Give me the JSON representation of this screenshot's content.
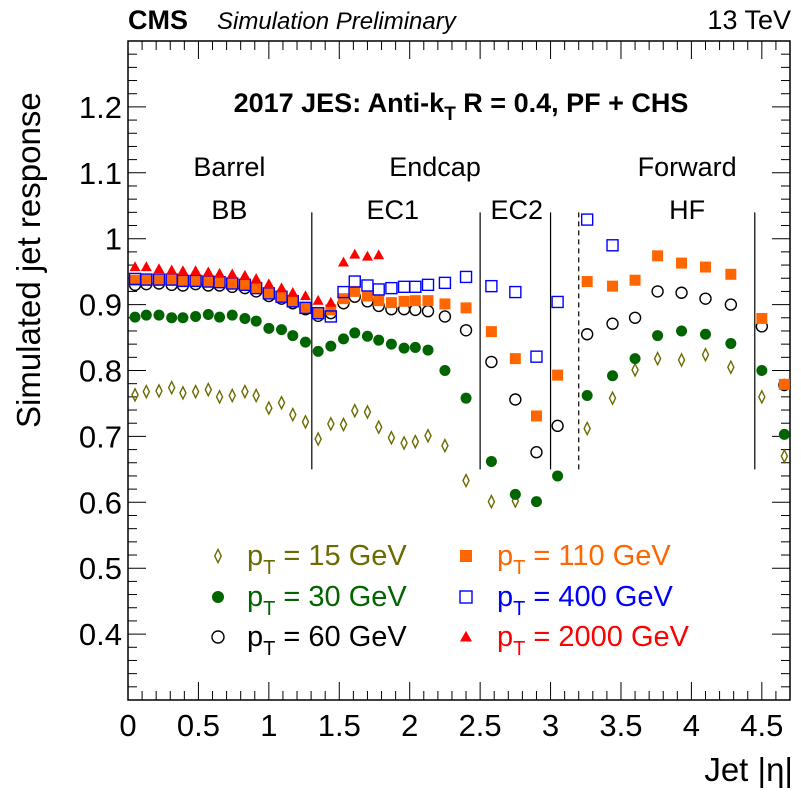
{
  "header": {
    "experiment": "CMS",
    "status": "Simulation Preliminary",
    "energy": "13 TeV"
  },
  "chart_data": {
    "type": "scatter",
    "title": "2017 JES: Anti-k",
    "title_sub": "T",
    "title_rest": " R = 0.4, PF + CHS",
    "xlabel": "Jet |η|",
    "ylabel": "Simulated jet response",
    "xlim": [
      0,
      4.7
    ],
    "ylim": [
      0.3,
      1.3
    ],
    "x_ticks": [
      0,
      0.5,
      1,
      1.5,
      2,
      2.5,
      3,
      3.5,
      4,
      4.5
    ],
    "x_tick_labels": [
      "0",
      "0.5",
      "1",
      "1.5",
      "2",
      "2.5",
      "3",
      "3.5",
      "4",
      "4.5"
    ],
    "y_ticks": [
      0.4,
      0.5,
      0.6,
      0.7,
      0.8,
      0.9,
      1.0,
      1.1,
      1.2
    ],
    "y_tick_labels": [
      "0.4",
      "0.5",
      "0.6",
      "0.7",
      "0.8",
      "0.9",
      "1",
      "1.1",
      "1.2"
    ],
    "grid": false,
    "legend_position": "bottom-center",
    "region_labels": [
      {
        "text": "Barrel",
        "x": 0.72,
        "y": 1.095
      },
      {
        "text": "BB",
        "x": 0.72,
        "y": 1.03
      },
      {
        "text": "Endcap",
        "x": 2.18,
        "y": 1.095
      },
      {
        "text": "EC1",
        "x": 1.88,
        "y": 1.03
      },
      {
        "text": "EC2",
        "x": 2.76,
        "y": 1.03
      },
      {
        "text": "Forward",
        "x": 3.97,
        "y": 1.095
      },
      {
        "text": "HF",
        "x": 3.97,
        "y": 1.03
      }
    ],
    "boundaries": [
      {
        "x": 1.305,
        "style": "solid",
        "y": [
          0.65,
          1.04
        ]
      },
      {
        "x": 2.5,
        "style": "solid",
        "y": [
          0.65,
          1.04
        ]
      },
      {
        "x": 3.0,
        "style": "solid",
        "y": [
          0.65,
          1.04
        ]
      },
      {
        "x": 3.2,
        "style": "dashed",
        "y": [
          0.65,
          1.04
        ]
      },
      {
        "x": 4.45,
        "style": "solid",
        "y": [
          0.65,
          1.04
        ]
      }
    ],
    "series": [
      {
        "name": "p",
        "sub": "T",
        "label_rest": " = 15 GeV",
        "marker": "open-diamond",
        "color": "#6b6b00",
        "points": [
          [
            0.05,
            0.763
          ],
          [
            0.13,
            0.768
          ],
          [
            0.22,
            0.769
          ],
          [
            0.31,
            0.774
          ],
          [
            0.39,
            0.766
          ],
          [
            0.48,
            0.768
          ],
          [
            0.57,
            0.771
          ],
          [
            0.65,
            0.76
          ],
          [
            0.74,
            0.762
          ],
          [
            0.83,
            0.768
          ],
          [
            0.91,
            0.762
          ],
          [
            1.0,
            0.743
          ],
          [
            1.09,
            0.751
          ],
          [
            1.17,
            0.733
          ],
          [
            1.26,
            0.722
          ],
          [
            1.35,
            0.696
          ],
          [
            1.44,
            0.719
          ],
          [
            1.53,
            0.718
          ],
          [
            1.61,
            0.739
          ],
          [
            1.7,
            0.737
          ],
          [
            1.78,
            0.714
          ],
          [
            1.87,
            0.698
          ],
          [
            1.96,
            0.69
          ],
          [
            2.04,
            0.692
          ],
          [
            2.13,
            0.701
          ],
          [
            2.25,
            0.686
          ],
          [
            2.4,
            0.633
          ],
          [
            2.58,
            0.601
          ],
          [
            2.75,
            0.602
          ],
          [
            3.26,
            0.712
          ],
          [
            3.44,
            0.758
          ],
          [
            3.6,
            0.801
          ],
          [
            3.76,
            0.818
          ],
          [
            3.93,
            0.816
          ],
          [
            4.1,
            0.824
          ],
          [
            4.28,
            0.805
          ],
          [
            4.5,
            0.76
          ],
          [
            4.66,
            0.67
          ]
        ]
      },
      {
        "name": "p",
        "sub": "T",
        "label_rest": " = 30 GeV",
        "marker": "filled-circle",
        "color": "#006400",
        "points": [
          [
            0.05,
            0.881
          ],
          [
            0.13,
            0.884
          ],
          [
            0.22,
            0.884
          ],
          [
            0.31,
            0.88
          ],
          [
            0.39,
            0.88
          ],
          [
            0.48,
            0.882
          ],
          [
            0.57,
            0.885
          ],
          [
            0.65,
            0.881
          ],
          [
            0.74,
            0.884
          ],
          [
            0.83,
            0.879
          ],
          [
            0.91,
            0.875
          ],
          [
            1.0,
            0.864
          ],
          [
            1.09,
            0.862
          ],
          [
            1.17,
            0.853
          ],
          [
            1.26,
            0.843
          ],
          [
            1.35,
            0.829
          ],
          [
            1.44,
            0.837
          ],
          [
            1.53,
            0.848
          ],
          [
            1.61,
            0.857
          ],
          [
            1.7,
            0.852
          ],
          [
            1.78,
            0.846
          ],
          [
            1.87,
            0.84
          ],
          [
            1.96,
            0.834
          ],
          [
            2.04,
            0.835
          ],
          [
            2.13,
            0.831
          ],
          [
            2.25,
            0.8
          ],
          [
            2.4,
            0.758
          ],
          [
            2.58,
            0.662
          ],
          [
            2.75,
            0.612
          ],
          [
            2.9,
            0.601
          ],
          [
            3.05,
            0.64
          ],
          [
            3.26,
            0.762
          ],
          [
            3.44,
            0.792
          ],
          [
            3.6,
            0.818
          ],
          [
            3.76,
            0.853
          ],
          [
            3.93,
            0.86
          ],
          [
            4.1,
            0.855
          ],
          [
            4.28,
            0.841
          ],
          [
            4.5,
            0.8
          ],
          [
            4.66,
            0.703
          ]
        ]
      },
      {
        "name": "p",
        "sub": "T",
        "label_rest": " = 60 GeV",
        "marker": "open-circle",
        "color": "#000000",
        "points": [
          [
            0.05,
            0.93
          ],
          [
            0.13,
            0.931
          ],
          [
            0.22,
            0.932
          ],
          [
            0.31,
            0.93
          ],
          [
            0.39,
            0.929
          ],
          [
            0.48,
            0.931
          ],
          [
            0.57,
            0.929
          ],
          [
            0.65,
            0.929
          ],
          [
            0.74,
            0.927
          ],
          [
            0.83,
            0.925
          ],
          [
            0.91,
            0.92
          ],
          [
            1.0,
            0.913
          ],
          [
            1.09,
            0.909
          ],
          [
            1.17,
            0.902
          ],
          [
            1.26,
            0.893
          ],
          [
            1.35,
            0.883
          ],
          [
            1.44,
            0.887
          ],
          [
            1.53,
            0.902
          ],
          [
            1.61,
            0.912
          ],
          [
            1.7,
            0.905
          ],
          [
            1.78,
            0.898
          ],
          [
            1.87,
            0.893
          ],
          [
            1.96,
            0.893
          ],
          [
            2.04,
            0.892
          ],
          [
            2.13,
            0.89
          ],
          [
            2.25,
            0.882
          ],
          [
            2.4,
            0.861
          ],
          [
            2.58,
            0.813
          ],
          [
            2.75,
            0.756
          ],
          [
            2.9,
            0.676
          ],
          [
            3.05,
            0.716
          ],
          [
            3.26,
            0.855
          ],
          [
            3.44,
            0.871
          ],
          [
            3.6,
            0.88
          ],
          [
            3.76,
            0.92
          ],
          [
            3.93,
            0.918
          ],
          [
            4.1,
            0.909
          ],
          [
            4.28,
            0.9
          ],
          [
            4.5,
            0.867
          ],
          [
            4.66,
            0.778
          ]
        ]
      },
      {
        "name": "p",
        "sub": "T",
        "label_rest": " = 110 GeV",
        "marker": "filled-square",
        "color": "#ff6600",
        "points": [
          [
            0.05,
            0.937
          ],
          [
            0.13,
            0.937
          ],
          [
            0.22,
            0.937
          ],
          [
            0.31,
            0.937
          ],
          [
            0.39,
            0.935
          ],
          [
            0.48,
            0.936
          ],
          [
            0.57,
            0.935
          ],
          [
            0.65,
            0.934
          ],
          [
            0.74,
            0.932
          ],
          [
            0.83,
            0.93
          ],
          [
            0.91,
            0.926
          ],
          [
            1.0,
            0.918
          ],
          [
            1.09,
            0.913
          ],
          [
            1.17,
            0.906
          ],
          [
            1.26,
            0.896
          ],
          [
            1.35,
            0.886
          ],
          [
            1.44,
            0.892
          ],
          [
            1.53,
            0.909
          ],
          [
            1.61,
            0.92
          ],
          [
            1.7,
            0.913
          ],
          [
            1.78,
            0.906
          ],
          [
            1.87,
            0.903
          ],
          [
            1.96,
            0.905
          ],
          [
            2.04,
            0.906
          ],
          [
            2.13,
            0.906
          ],
          [
            2.25,
            0.901
          ],
          [
            2.4,
            0.895
          ],
          [
            2.58,
            0.859
          ],
          [
            2.75,
            0.818
          ],
          [
            2.9,
            0.731
          ],
          [
            3.05,
            0.793
          ],
          [
            3.26,
            0.935
          ],
          [
            3.44,
            0.928
          ],
          [
            3.6,
            0.937
          ],
          [
            3.76,
            0.974
          ],
          [
            3.93,
            0.963
          ],
          [
            4.1,
            0.957
          ],
          [
            4.28,
            0.946
          ],
          [
            4.5,
            0.879
          ],
          [
            4.66,
            0.779
          ]
        ]
      },
      {
        "name": "p",
        "sub": "T",
        "label_rest": " = 400 GeV",
        "marker": "open-square",
        "color": "#0000ff",
        "points": [
          [
            0.05,
            0.939
          ],
          [
            0.13,
            0.938
          ],
          [
            0.22,
            0.938
          ],
          [
            0.31,
            0.938
          ],
          [
            0.39,
            0.936
          ],
          [
            0.48,
            0.936
          ],
          [
            0.57,
            0.935
          ],
          [
            0.65,
            0.934
          ],
          [
            0.74,
            0.932
          ],
          [
            0.83,
            0.93
          ],
          [
            0.91,
            0.925
          ],
          [
            1.0,
            0.917
          ],
          [
            1.09,
            0.912
          ],
          [
            1.17,
            0.905
          ],
          [
            1.26,
            0.895
          ],
          [
            1.35,
            0.887
          ],
          [
            1.44,
            0.882
          ],
          [
            1.53,
            0.919
          ],
          [
            1.61,
            0.935
          ],
          [
            1.7,
            0.929
          ],
          [
            1.78,
            0.923
          ],
          [
            1.87,
            0.925
          ],
          [
            1.96,
            0.927
          ],
          [
            2.04,
            0.927
          ],
          [
            2.13,
            0.93
          ],
          [
            2.25,
            0.933
          ],
          [
            2.4,
            0.942
          ],
          [
            2.58,
            0.928
          ],
          [
            2.75,
            0.919
          ],
          [
            2.9,
            0.821
          ],
          [
            3.05,
            0.904
          ],
          [
            3.26,
            1.029
          ],
          [
            3.44,
            0.99
          ]
        ]
      },
      {
        "name": "p",
        "sub": "T",
        "label_rest": " = 2000 GeV",
        "marker": "filled-triangle",
        "color": "#ff0000",
        "points": [
          [
            0.05,
            0.957
          ],
          [
            0.13,
            0.957
          ],
          [
            0.22,
            0.954
          ],
          [
            0.31,
            0.952
          ],
          [
            0.39,
            0.951
          ],
          [
            0.48,
            0.951
          ],
          [
            0.57,
            0.949
          ],
          [
            0.65,
            0.947
          ],
          [
            0.74,
            0.946
          ],
          [
            0.83,
            0.944
          ],
          [
            0.91,
            0.939
          ],
          [
            1.0,
            0.931
          ],
          [
            1.09,
            0.925
          ],
          [
            1.17,
            0.918
          ],
          [
            1.26,
            0.913
          ],
          [
            1.35,
            0.906
          ],
          [
            1.44,
            0.903
          ],
          [
            1.53,
            0.964
          ],
          [
            1.61,
            0.976
          ],
          [
            1.7,
            0.973
          ],
          [
            1.78,
            0.975
          ]
        ]
      }
    ]
  }
}
